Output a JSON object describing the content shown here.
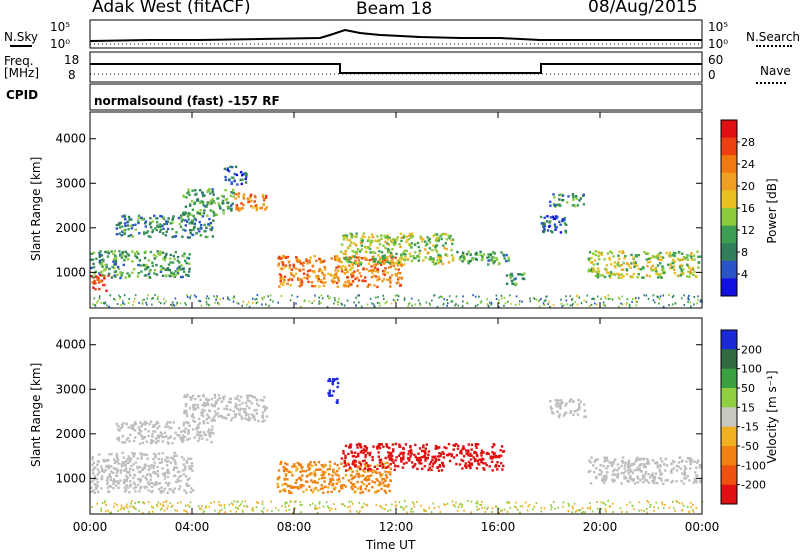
{
  "header": {
    "station": "Adak West (fitACF)",
    "beam": "Beam 18",
    "date": "08/Aug/2015"
  },
  "noise_panel": {
    "left_label": "N.Sky",
    "right_label": "N.Search",
    "ticks_left": [
      "10^5",
      "10^0"
    ],
    "ticks_right": [
      "10^5",
      "10^0"
    ]
  },
  "freq_panel": {
    "left_label_top": "Freq.",
    "left_label_unit": "[MHz]",
    "right_label": "Nave",
    "ticks_left": [
      "18",
      "8"
    ],
    "ticks_right": [
      "60",
      "0"
    ]
  },
  "cpid": {
    "label": "CPID",
    "text": "normalsound (fast) -157 RF"
  },
  "colors": {
    "power_scale": [
      "#1010e0",
      "#2a55c8",
      "#2f7f5a",
      "#3c9e50",
      "#8ccc3c",
      "#e8c020",
      "#f0a020",
      "#f07a10",
      "#ee4010",
      "#e01010"
    ],
    "velocity_scale": [
      "#1a2ad8",
      "#2f6a40",
      "#3aa040",
      "#90d040",
      "#c8c8c0",
      "#f0b020",
      "#f08010",
      "#f05010",
      "#e01010"
    ],
    "ground_scatter": "#bebebe"
  },
  "chart_data": [
    {
      "type": "heatmap",
      "parameter": "Power",
      "ylabel": "Slant Range [km]",
      "xlabel": "",
      "colorbar_label": "Power [dB]",
      "colorbar_ticks": [
        "28",
        "24",
        "20",
        "16",
        "12",
        "8",
        "4"
      ],
      "colorbar_range": [
        0,
        30
      ],
      "y_ticks": [
        "1000",
        "2000",
        "3000",
        "4000"
      ],
      "ylim": [
        200,
        4600
      ],
      "x_ticks": [
        "00:00",
        "04:00",
        "08:00",
        "12:00",
        "16:00",
        "20:00",
        "00:00"
      ],
      "xlim": [
        0,
        24
      ],
      "regions": [
        {
          "t": [
            0.0,
            0.7
          ],
          "r": [
            600,
            1000
          ],
          "power": 26
        },
        {
          "t": [
            0.0,
            3.9
          ],
          "r": [
            900,
            1500
          ],
          "power": 10
        },
        {
          "t": [
            1.0,
            4.8
          ],
          "r": [
            1800,
            2300
          ],
          "power": 8
        },
        {
          "t": [
            3.6,
            5.6
          ],
          "r": [
            2300,
            2900
          ],
          "power": 10
        },
        {
          "t": [
            5.6,
            6.9
          ],
          "r": [
            2400,
            2800
          ],
          "power": 22
        },
        {
          "t": [
            5.2,
            6.2
          ],
          "r": [
            3000,
            3400
          ],
          "power": 6
        },
        {
          "t": [
            7.3,
            12.2
          ],
          "r": [
            700,
            1400
          ],
          "power": 22
        },
        {
          "t": [
            9.8,
            14.2
          ],
          "r": [
            1200,
            1900
          ],
          "power": 14
        },
        {
          "t": [
            14.3,
            16.4
          ],
          "r": [
            1200,
            1500
          ],
          "power": 10
        },
        {
          "t": [
            16.3,
            17.0
          ],
          "r": [
            700,
            1000
          ],
          "power": 10
        },
        {
          "t": [
            17.6,
            18.7
          ],
          "r": [
            1900,
            2300
          ],
          "power": 6
        },
        {
          "t": [
            18.0,
            19.4
          ],
          "r": [
            2500,
            2800
          ],
          "power": 8
        },
        {
          "t": [
            19.5,
            23.9
          ],
          "r": [
            900,
            1500
          ],
          "power": 14
        }
      ]
    },
    {
      "type": "heatmap",
      "parameter": "Velocity",
      "ylabel": "Slant Range [km]",
      "xlabel": "Time UT",
      "colorbar_label": "Velocity [m s^-1]",
      "colorbar_ticks": [
        "200",
        "100",
        "50",
        "15",
        "-15",
        "-50",
        "-100",
        "-200"
      ],
      "colorbar_range": [
        -250,
        250
      ],
      "y_ticks": [
        "1000",
        "2000",
        "3000",
        "4000"
      ],
      "ylim": [
        200,
        4600
      ],
      "x_ticks": [
        "00:00",
        "04:00",
        "08:00",
        "12:00",
        "16:00",
        "20:00",
        "00:00"
      ],
      "xlim": [
        0,
        24
      ],
      "regions": [
        {
          "t": [
            0.0,
            4.0
          ],
          "r": [
            700,
            1600
          ],
          "velocity": 0,
          "ground_scatter": true
        },
        {
          "t": [
            1.0,
            4.8
          ],
          "r": [
            1800,
            2300
          ],
          "velocity": 0,
          "ground_scatter": true
        },
        {
          "t": [
            3.6,
            6.9
          ],
          "r": [
            2300,
            2900
          ],
          "velocity": 0,
          "ground_scatter": true
        },
        {
          "t": [
            7.3,
            11.8
          ],
          "r": [
            700,
            1400
          ],
          "velocity": -60
        },
        {
          "t": [
            9.8,
            16.2
          ],
          "r": [
            1200,
            1800
          ],
          "velocity": -200
        },
        {
          "t": [
            9.3,
            9.7
          ],
          "r": [
            2700,
            3300
          ],
          "velocity": 200
        },
        {
          "t": [
            18.0,
            19.4
          ],
          "r": [
            2400,
            2800
          ],
          "velocity": 0,
          "ground_scatter": true
        },
        {
          "t": [
            19.5,
            23.9
          ],
          "r": [
            900,
            1500
          ],
          "velocity": 0,
          "ground_scatter": true
        }
      ]
    }
  ]
}
